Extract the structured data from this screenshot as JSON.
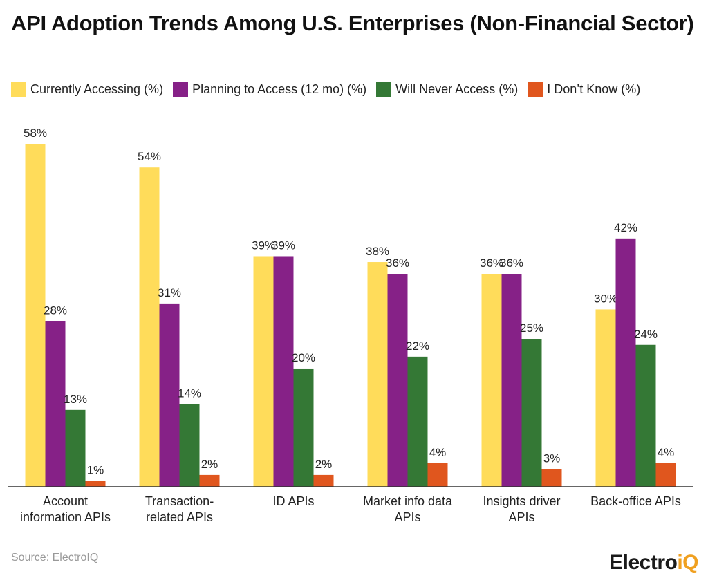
{
  "chart_data": {
    "type": "bar",
    "title": "API Adoption Trends Among U.S. Enterprises (Non-Financial Sector)",
    "categories": [
      [
        "Account",
        "information APIs"
      ],
      [
        "Transaction-",
        "related APIs"
      ],
      [
        "ID APIs"
      ],
      [
        "Market info data",
        "APIs"
      ],
      [
        "Insights driver",
        "APIs"
      ],
      [
        "Back-office APIs"
      ]
    ],
    "series": [
      {
        "name": "Currently Accessing (%)",
        "color": "#FFDC5A",
        "values": [
          58,
          54,
          39,
          38,
          36,
          30
        ]
      },
      {
        "name": "Planning to Access (12 mo) (%)",
        "color": "#862187",
        "values": [
          28,
          31,
          39,
          36,
          36,
          42
        ]
      },
      {
        "name": "Will Never Access (%)",
        "color": "#347835",
        "values": [
          13,
          14,
          20,
          22,
          25,
          24
        ]
      },
      {
        "name": "I Don’t Know (%)",
        "color": "#E0561E",
        "values": [
          1,
          2,
          2,
          4,
          3,
          4
        ]
      }
    ],
    "value_suffix": "%",
    "ylim": [
      0,
      60
    ],
    "grid": false,
    "legend_position": "top-left"
  },
  "source": "Source: ElectroIQ",
  "logo": "ElectroiQ"
}
